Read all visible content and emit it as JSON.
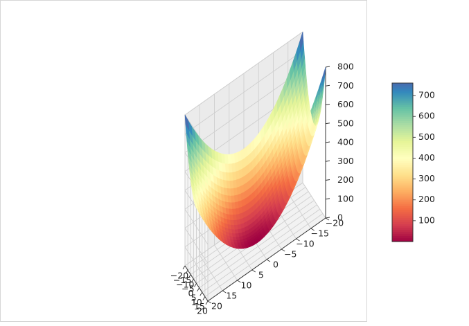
{
  "chart_data": {
    "type": "surface3d",
    "title": "",
    "xlabel": "",
    "ylabel": "",
    "zlabel": "",
    "function": "z = x^2 + y^2",
    "x_range": [
      -20,
      20
    ],
    "y_range": [
      -20,
      20
    ],
    "z_range": [
      0,
      800
    ],
    "x_ticks": [
      -20,
      -15,
      -10,
      -5,
      0,
      5,
      10,
      15,
      20
    ],
    "y_ticks": [
      -20,
      -15,
      -10,
      -5,
      0,
      5,
      10,
      15,
      20
    ],
    "z_ticks": [
      0,
      100,
      200,
      300,
      400,
      500,
      600,
      700,
      800
    ],
    "x_tick_labels": [
      "−20",
      "−15",
      "−10",
      "−5",
      "0",
      "5",
      "10",
      "15",
      "20"
    ],
    "y_tick_labels": [
      "−20",
      "−15",
      "−10",
      "−5",
      "0",
      "5",
      "10",
      "15",
      "20"
    ],
    "z_tick_labels": [
      "0",
      "100",
      "200",
      "300",
      "400",
      "500",
      "600",
      "700",
      "800"
    ],
    "surface_min": 0,
    "surface_max": 800,
    "colormap": "Spectral",
    "colormap_stops": [
      "#9e0142",
      "#d53e4f",
      "#f46d43",
      "#fdae61",
      "#fee08b",
      "#ffffbf",
      "#e6f598",
      "#abdda4",
      "#66c2a5",
      "#3288bd",
      "#5e4fa2"
    ],
    "colorbar": {
      "range": [
        0,
        760
      ],
      "ticks": [
        100,
        200,
        300,
        400,
        500,
        600,
        700
      ],
      "tick_labels": [
        "100",
        "200",
        "300",
        "400",
        "500",
        "600",
        "700"
      ]
    },
    "grid": true
  }
}
